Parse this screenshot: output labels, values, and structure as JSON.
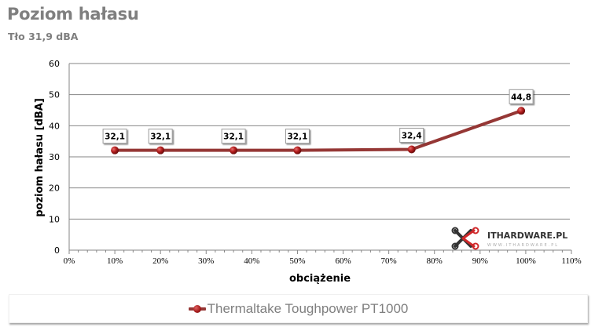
{
  "header": {
    "title": "Poziom hałasu",
    "subtitle": "Tło 31,9 dBA"
  },
  "axes": {
    "y_label": "poziom hałasu [dBA]",
    "x_label": "obciążenie",
    "y_ticks": [
      "0",
      "10",
      "20",
      "30",
      "40",
      "50",
      "60"
    ],
    "x_ticks": [
      "0%",
      "10%",
      "20%",
      "30%",
      "40%",
      "50%",
      "60%",
      "70%",
      "80%",
      "90%",
      "100%",
      "110%"
    ]
  },
  "data_labels": [
    "32,1",
    "32,1",
    "32,1",
    "32,1",
    "32,4",
    "44,8"
  ],
  "legend": {
    "label": "Thermaltake Toughpower PT1000"
  },
  "watermark": {
    "brand": "ITHARDWARE.PL",
    "url": "WWW.ITHARDWARE.PL"
  },
  "colors": {
    "series": "#953735",
    "marker": "#c0282a",
    "grid": "#868686",
    "text_gray": "#7f7f7f"
  },
  "chart_data": {
    "type": "line",
    "title": "Poziom hałasu",
    "subtitle": "Tło 31,9 dBA",
    "xlabel": "obciążenie",
    "ylabel": "poziom hałasu [dBA]",
    "xlim": [
      0,
      110
    ],
    "ylim": [
      0,
      60
    ],
    "x_tick_labels": [
      "0%",
      "10%",
      "20%",
      "30%",
      "40%",
      "50%",
      "60%",
      "70%",
      "80%",
      "90%",
      "100%",
      "110%"
    ],
    "y_tick_labels": [
      "0",
      "10",
      "20",
      "30",
      "40",
      "50",
      "60"
    ],
    "grid": "horizontal",
    "legend_position": "bottom",
    "series": [
      {
        "name": "Thermaltake Toughpower PT1000",
        "x": [
          10,
          20,
          36,
          50,
          75,
          99
        ],
        "values": [
          32.1,
          32.1,
          32.1,
          32.1,
          32.4,
          44.8
        ],
        "labels": [
          "32,1",
          "32,1",
          "32,1",
          "32,1",
          "32,4",
          "44,8"
        ]
      }
    ]
  }
}
